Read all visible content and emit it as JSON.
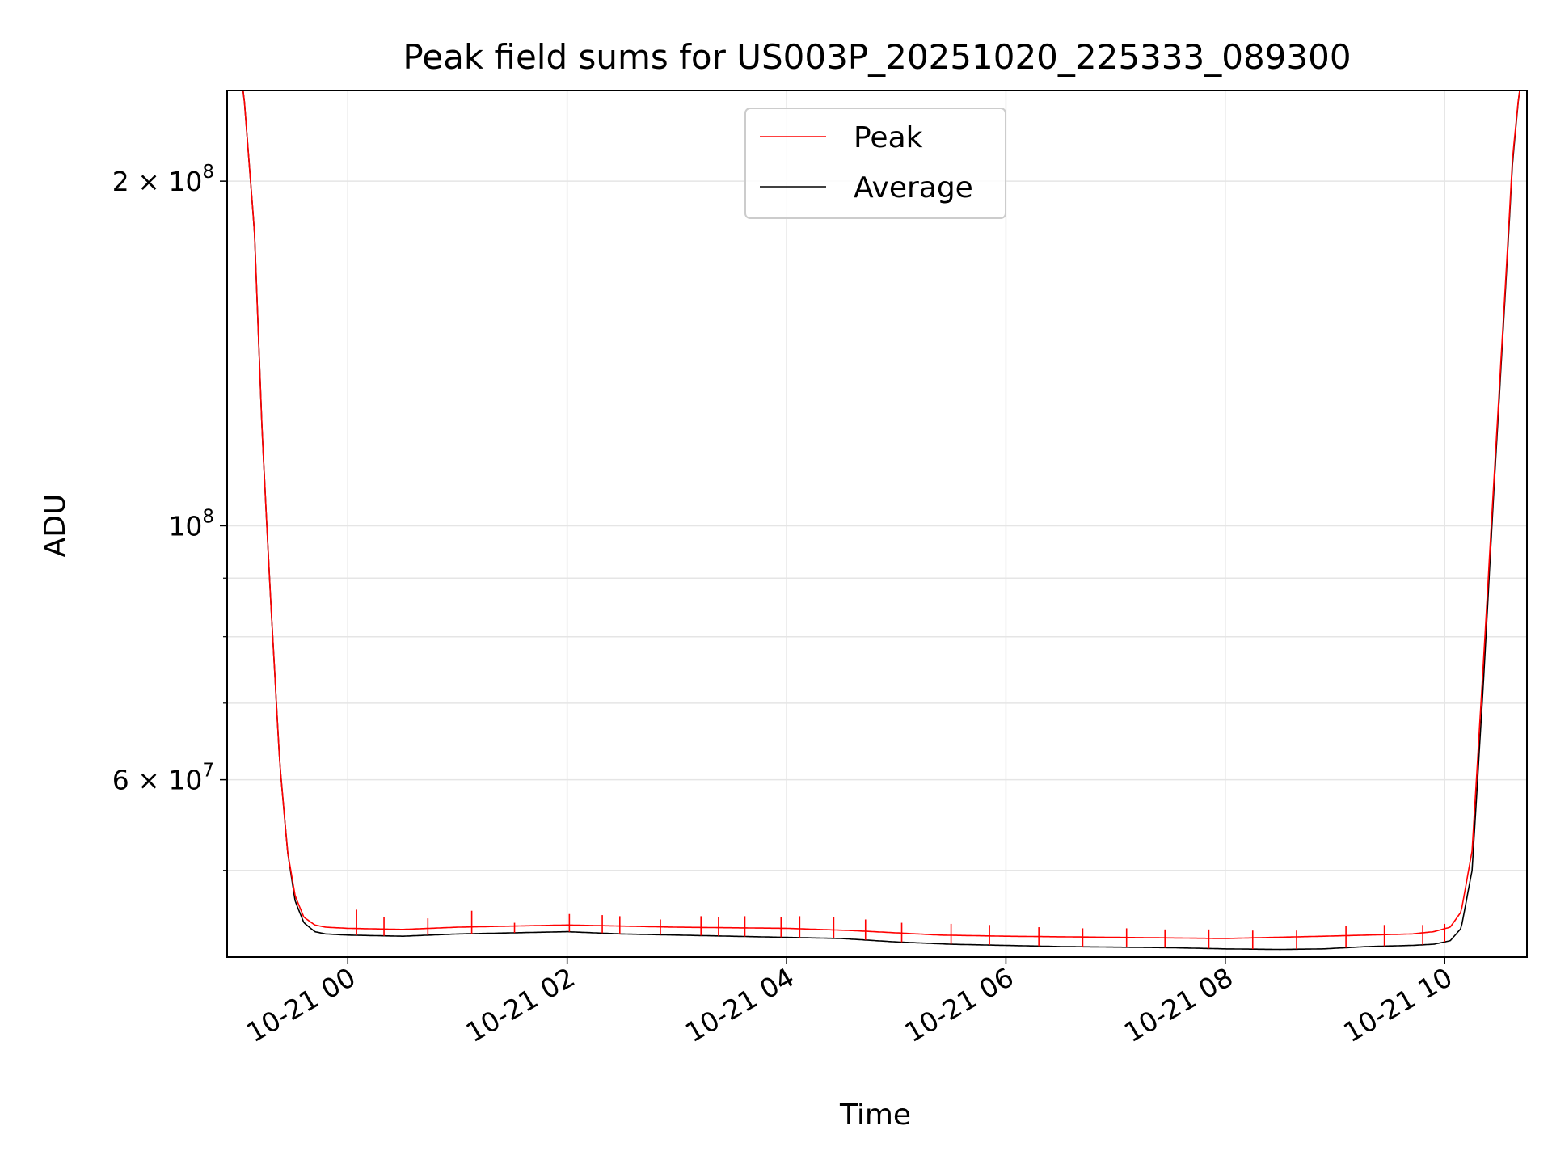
{
  "chart_data": {
    "type": "line",
    "title": "Peak field sums for US003P_20251020_225333_089300",
    "xlabel": "Time",
    "ylabel": "ADU",
    "yscale": "log",
    "ylim": [
      42000000,
      240000000
    ],
    "xlim_hours": [
      -1.1,
      10.75
    ],
    "grid": true,
    "legend_position": "top-center",
    "x_ticks": [
      {
        "hour": 0,
        "label": "10-21 00"
      },
      {
        "hour": 2,
        "label": "10-21 02"
      },
      {
        "hour": 4,
        "label": "10-21 04"
      },
      {
        "hour": 6,
        "label": "10-21 06"
      },
      {
        "hour": 8,
        "label": "10-21 08"
      },
      {
        "hour": 10,
        "label": "10-21 10"
      }
    ],
    "y_major_ticks": [
      {
        "value": 200000000,
        "base": "2 × 10",
        "exp": "8"
      },
      {
        "value": 100000000,
        "base": "10",
        "exp": "8"
      },
      {
        "value": 60000000,
        "base": "6 × 10",
        "exp": "7"
      }
    ],
    "y_minor_ticks": [
      50000000,
      70000000,
      80000000,
      90000000
    ],
    "series": [
      {
        "name": "Peak",
        "color": "#ff0000",
        "hours": [
          -1.1,
          -0.95,
          -0.85,
          -0.78,
          -0.7,
          -0.62,
          -0.55,
          -0.48,
          -0.4,
          -0.3,
          -0.2,
          0,
          0.5,
          1.0,
          1.5,
          2.0,
          3.0,
          4.0,
          4.6,
          5.0,
          5.4,
          6.0,
          7.0,
          8.0,
          8.9,
          9.3,
          9.7,
          9.9,
          10.05,
          10.15,
          10.25,
          10.35,
          10.45,
          10.55,
          10.62,
          10.68,
          10.75
        ],
        "values": [
          240000000,
          240000000,
          180000000,
          120000000,
          85000000,
          62000000,
          52000000,
          47500000,
          45500000,
          44800000,
          44600000,
          44500000,
          44400000,
          44600000,
          44700000,
          44800000,
          44600000,
          44500000,
          44300000,
          44100000,
          43900000,
          43800000,
          43700000,
          43600000,
          43800000,
          43900000,
          44000000,
          44200000,
          44600000,
          46000000,
          52000000,
          75000000,
          110000000,
          160000000,
          210000000,
          240000000,
          240000000
        ],
        "spikes": [
          [
            0.08,
            46200000
          ],
          [
            0.33,
            45500000
          ],
          [
            0.73,
            45400000
          ],
          [
            1.13,
            46100000
          ],
          [
            1.52,
            45000000
          ],
          [
            2.02,
            45800000
          ],
          [
            2.32,
            45700000
          ],
          [
            2.48,
            45600000
          ],
          [
            2.85,
            45300000
          ],
          [
            3.22,
            45600000
          ],
          [
            3.38,
            45500000
          ],
          [
            3.62,
            45600000
          ],
          [
            3.95,
            45500000
          ],
          [
            4.12,
            45600000
          ],
          [
            4.43,
            45500000
          ],
          [
            4.72,
            45300000
          ],
          [
            5.05,
            45000000
          ],
          [
            5.5,
            44900000
          ],
          [
            5.85,
            44800000
          ],
          [
            6.3,
            44600000
          ],
          [
            6.7,
            44500000
          ],
          [
            7.1,
            44500000
          ],
          [
            7.45,
            44400000
          ],
          [
            7.85,
            44400000
          ],
          [
            8.25,
            44300000
          ],
          [
            8.65,
            44300000
          ],
          [
            9.1,
            44700000
          ],
          [
            9.45,
            44800000
          ],
          [
            9.8,
            44800000
          ],
          [
            10.0,
            44900000
          ]
        ]
      },
      {
        "name": "Average",
        "color": "#000000",
        "hours": [
          -1.1,
          -0.95,
          -0.85,
          -0.78,
          -0.7,
          -0.62,
          -0.55,
          -0.48,
          -0.4,
          -0.3,
          -0.2,
          0,
          0.5,
          1.0,
          1.5,
          2.0,
          2.5,
          3.0,
          3.5,
          4.0,
          4.5,
          5.0,
          5.5,
          6.0,
          6.5,
          7.0,
          7.5,
          8.0,
          8.5,
          8.9,
          9.3,
          9.7,
          9.9,
          10.05,
          10.15,
          10.25,
          10.35,
          10.45,
          10.55,
          10.62,
          10.68,
          10.75
        ],
        "values": [
          240000000,
          240000000,
          180000000,
          120000000,
          85000000,
          62000000,
          52000000,
          47000000,
          45000000,
          44200000,
          44000000,
          43900000,
          43800000,
          44000000,
          44100000,
          44200000,
          44000000,
          43900000,
          43800000,
          43700000,
          43600000,
          43300000,
          43100000,
          43000000,
          42900000,
          42850000,
          42800000,
          42700000,
          42650000,
          42700000,
          42900000,
          43000000,
          43100000,
          43400000,
          44500000,
          50000000,
          72000000,
          108000000,
          158000000,
          208000000,
          240000000,
          240000000
        ]
      }
    ]
  }
}
